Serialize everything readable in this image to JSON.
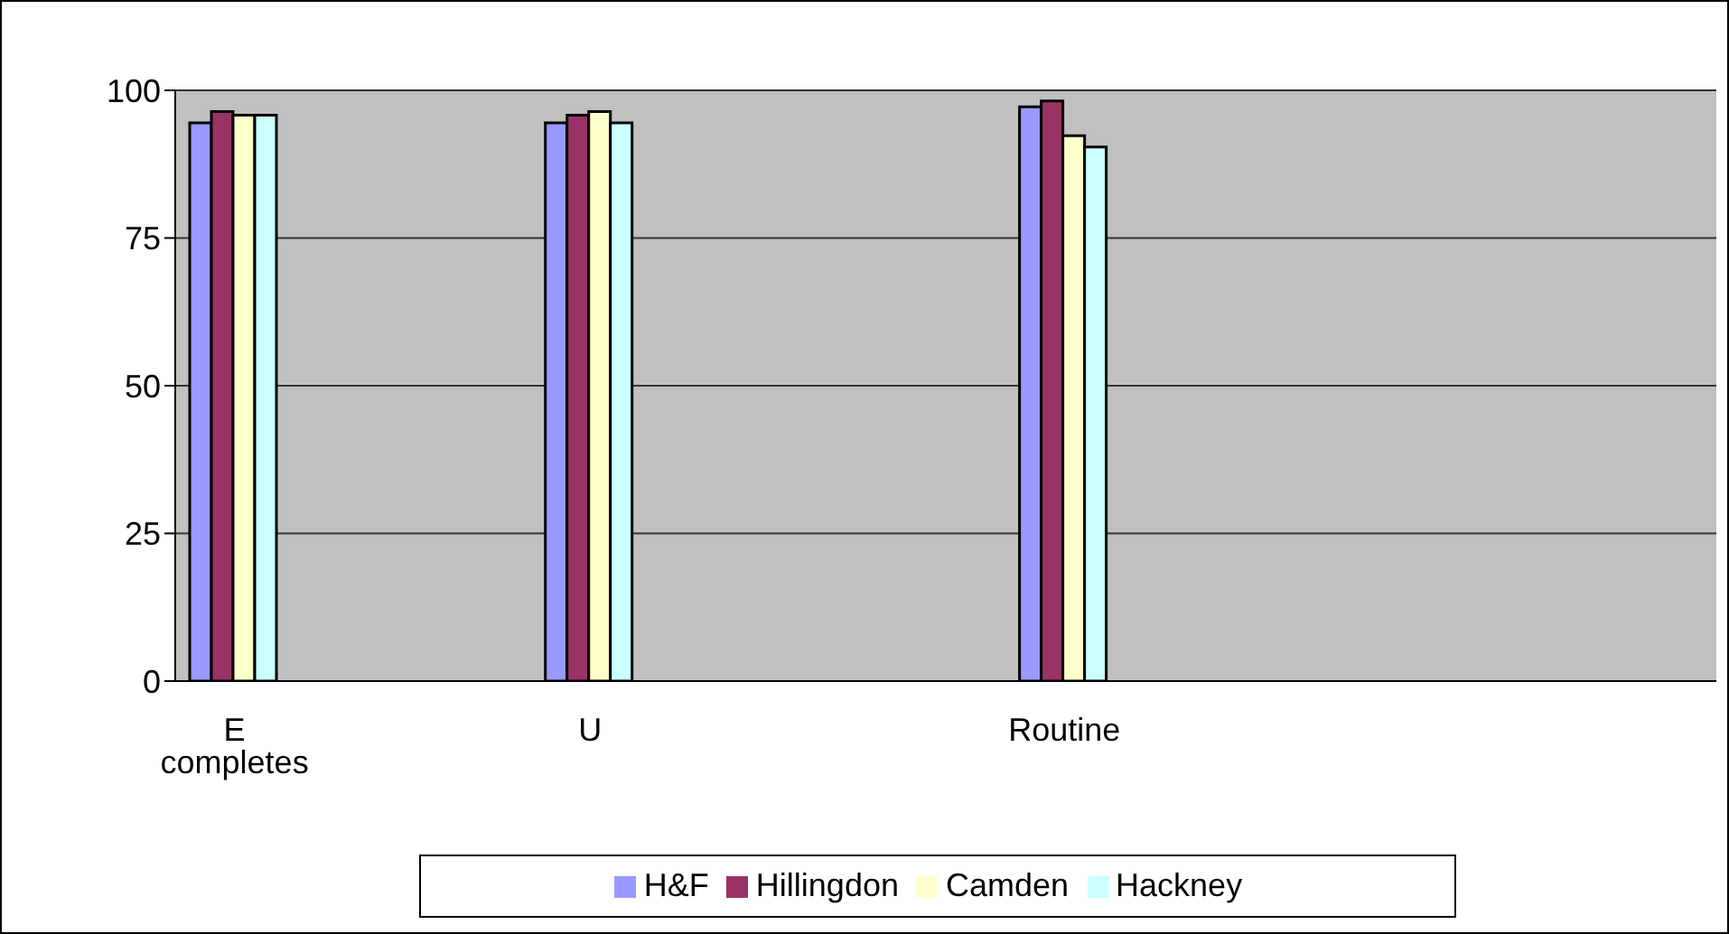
{
  "chart_data": {
    "type": "bar",
    "categories": [
      "E completes",
      null,
      null,
      "U",
      null,
      null,
      null,
      "Routine",
      null,
      null,
      null,
      null,
      null
    ],
    "series": [
      {
        "name": "H&F",
        "color": "#9999ff",
        "values": [
          94.5,
          null,
          null,
          94.5,
          null,
          null,
          null,
          97.2,
          null,
          null,
          null,
          null,
          null
        ]
      },
      {
        "name": "Hillingdon",
        "color": "#993366",
        "values": [
          96.4,
          null,
          null,
          95.8,
          null,
          null,
          null,
          98.2,
          null,
          null,
          null,
          null,
          null
        ]
      },
      {
        "name": "Camden",
        "color": "#ffffcc",
        "values": [
          95.8,
          null,
          null,
          96.4,
          null,
          null,
          null,
          92.3,
          null,
          null,
          null,
          null,
          null
        ]
      },
      {
        "name": "Hackney",
        "color": "#ccffff",
        "values": [
          95.8,
          null,
          null,
          94.5,
          null,
          null,
          null,
          90.4,
          null,
          null,
          null,
          null,
          null
        ]
      }
    ],
    "ylim": [
      0,
      100
    ],
    "yticks": [
      0,
      25,
      50,
      75,
      100
    ],
    "grid": "y",
    "legend": "bottom"
  }
}
